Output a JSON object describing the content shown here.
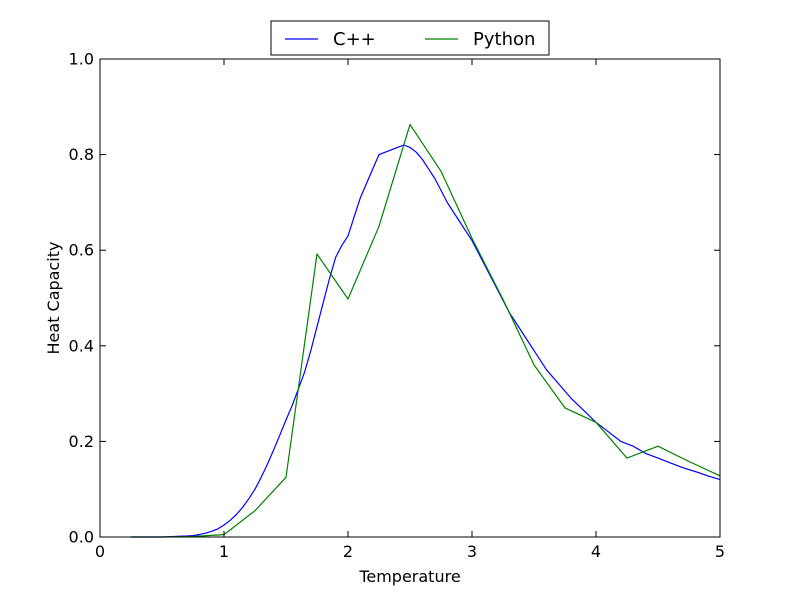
{
  "chart_data": {
    "type": "line",
    "xlabel": "Temperature",
    "ylabel": "Heat Capacity",
    "xlim": [
      0,
      5
    ],
    "ylim": [
      0,
      1.0
    ],
    "xticks": [
      0,
      1,
      2,
      3,
      4,
      5
    ],
    "xtick_labels": [
      "0",
      "1",
      "2",
      "3",
      "4",
      "5"
    ],
    "yticks": [
      0.0,
      0.2,
      0.4,
      0.6,
      0.8,
      1.0
    ],
    "ytick_labels": [
      "0.0",
      "0.2",
      "0.4",
      "0.6",
      "0.8",
      "1.0"
    ],
    "grid": false,
    "legend_position": "top-center (above plot)",
    "series": [
      {
        "name": "C++",
        "color": "#0000ff",
        "x": [
          0.25,
          0.5,
          0.6,
          0.7,
          0.75,
          0.8,
          0.85,
          0.9,
          0.95,
          1.0,
          1.05,
          1.1,
          1.15,
          1.2,
          1.25,
          1.3,
          1.35,
          1.4,
          1.45,
          1.5,
          1.55,
          1.6,
          1.65,
          1.7,
          1.75,
          1.8,
          1.85,
          1.9,
          1.95,
          2.0,
          2.05,
          2.1,
          2.15,
          2.2,
          2.25,
          2.3,
          2.35,
          2.4,
          2.45,
          2.5,
          2.55,
          2.6,
          2.65,
          2.7,
          2.75,
          2.8,
          2.85,
          2.9,
          2.95,
          3.0,
          3.1,
          3.2,
          3.3,
          3.4,
          3.5,
          3.6,
          3.7,
          3.8,
          3.9,
          4.0,
          4.1,
          4.2,
          4.3,
          4.4,
          4.5,
          4.6,
          4.7,
          4.8,
          4.9,
          5.0
        ],
        "y": [
          0.0,
          0.0,
          0.001,
          0.002,
          0.003,
          0.005,
          0.008,
          0.012,
          0.017,
          0.025,
          0.035,
          0.047,
          0.062,
          0.08,
          0.1,
          0.125,
          0.152,
          0.182,
          0.213,
          0.245,
          0.275,
          0.31,
          0.345,
          0.39,
          0.44,
          0.49,
          0.54,
          0.585,
          0.61,
          0.63,
          0.67,
          0.71,
          0.74,
          0.77,
          0.8,
          0.805,
          0.81,
          0.815,
          0.82,
          0.815,
          0.805,
          0.79,
          0.77,
          0.75,
          0.725,
          0.7,
          0.68,
          0.66,
          0.64,
          0.62,
          0.57,
          0.52,
          0.47,
          0.43,
          0.39,
          0.35,
          0.32,
          0.29,
          0.265,
          0.24,
          0.22,
          0.2,
          0.19,
          0.175,
          0.165,
          0.155,
          0.145,
          0.137,
          0.128,
          0.12
        ]
      },
      {
        "name": "Python",
        "color": "#008000",
        "x": [
          0.25,
          0.5,
          0.75,
          1.0,
          1.25,
          1.5,
          1.75,
          2.0,
          2.25,
          2.5,
          2.75,
          3.0,
          3.25,
          3.5,
          3.75,
          4.0,
          4.25,
          4.5,
          4.75,
          5.0
        ],
        "y": [
          0.0,
          0.0,
          0.001,
          0.005,
          0.055,
          0.125,
          0.592,
          0.498,
          0.65,
          0.863,
          0.765,
          0.625,
          0.497,
          0.36,
          0.27,
          0.24,
          0.165,
          0.19,
          0.158,
          0.128
        ]
      }
    ]
  }
}
